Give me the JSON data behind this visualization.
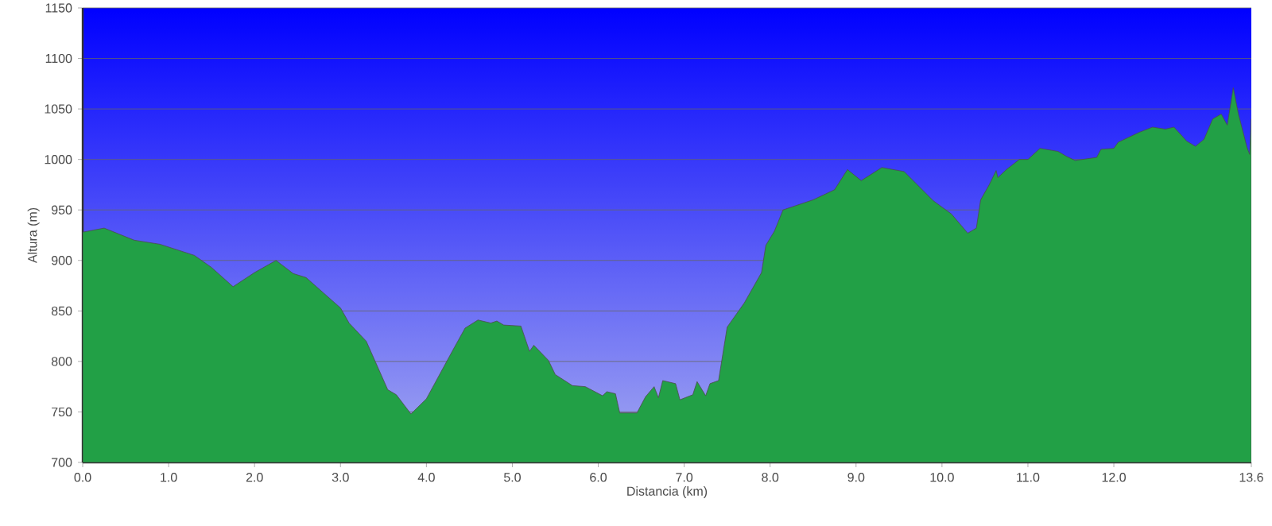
{
  "chart_data": {
    "type": "area",
    "xlabel": "Distancia    (km)",
    "ylabel": "Altura (m)",
    "xlim": [
      0,
      13.6
    ],
    "ylim": [
      700,
      1150
    ],
    "xticks": [
      {
        "value": 0,
        "label": "0.0"
      },
      {
        "value": 1,
        "label": "1.0"
      },
      {
        "value": 2,
        "label": "2.0"
      },
      {
        "value": 3,
        "label": "3.0"
      },
      {
        "value": 4,
        "label": "4.0"
      },
      {
        "value": 5,
        "label": "5.0"
      },
      {
        "value": 6,
        "label": "6.0"
      },
      {
        "value": 7,
        "label": "7.0"
      },
      {
        "value": 8,
        "label": "8.0"
      },
      {
        "value": 9,
        "label": "9.0"
      },
      {
        "value": 10,
        "label": "10.0"
      },
      {
        "value": 11,
        "label": "11.0"
      },
      {
        "value": 12,
        "label": "12.0"
      },
      {
        "value": 13.6,
        "label": "13.6"
      }
    ],
    "yticks": [
      700,
      750,
      800,
      850,
      900,
      950,
      1000,
      1050,
      1100,
      1150
    ],
    "grid": "y",
    "marker": "none",
    "line_style": "solid",
    "series": [
      {
        "color": "#22a046",
        "x": [
          0,
          0.25,
          0.6,
          0.9,
          1.3,
          1.5,
          1.75,
          2.0,
          2.25,
          2.45,
          2.6,
          2.8,
          3.0,
          3.1,
          3.3,
          3.55,
          3.65,
          3.82,
          4.0,
          4.3,
          4.45,
          4.6,
          4.75,
          4.82,
          4.9,
          5.1,
          5.2,
          5.25,
          5.42,
          5.5,
          5.7,
          5.85,
          6.05,
          6.1,
          6.2,
          6.25,
          6.45,
          6.55,
          6.65,
          6.7,
          6.75,
          6.9,
          6.95,
          7.1,
          7.15,
          7.25,
          7.3,
          7.4,
          7.5,
          7.7,
          7.9,
          7.95,
          8.05,
          8.15,
          8.5,
          8.75,
          8.9,
          9.06,
          9.3,
          9.56,
          9.9,
          10.11,
          10.3,
          10.4,
          10.45,
          10.55,
          10.63,
          10.65,
          10.75,
          10.9,
          11.0,
          11.14,
          11.35,
          11.45,
          11.55,
          11.8,
          11.85,
          12.0,
          12.05,
          12.3,
          12.45,
          12.6,
          12.7,
          12.85,
          12.95,
          13.05,
          13.15,
          13.25,
          13.32,
          13.39,
          13.45,
          13.55,
          13.58,
          13.6
        ],
        "values": [
          928,
          932,
          920,
          916,
          905,
          893,
          874,
          888,
          900,
          887,
          883,
          868,
          853,
          838,
          820,
          772,
          767,
          748,
          763,
          810,
          833,
          841,
          838,
          840,
          836,
          835,
          810,
          816,
          801,
          787,
          776,
          775,
          766,
          770,
          768,
          749,
          749,
          765,
          775,
          764,
          781,
          778,
          762,
          767,
          780,
          766,
          778,
          781,
          834,
          858,
          888,
          915,
          929,
          950,
          960,
          970,
          990,
          979,
          992,
          988,
          959,
          946,
          927,
          932,
          960,
          975,
          989,
          982,
          990,
          1000,
          1000,
          1011,
          1008,
          1003,
          999,
          1002,
          1010,
          1011,
          1017,
          1027,
          1032,
          1030,
          1032,
          1018,
          1013,
          1020,
          1040,
          1045,
          1034,
          1071,
          1045,
          1012,
          1005,
          1040
        ]
      }
    ]
  }
}
